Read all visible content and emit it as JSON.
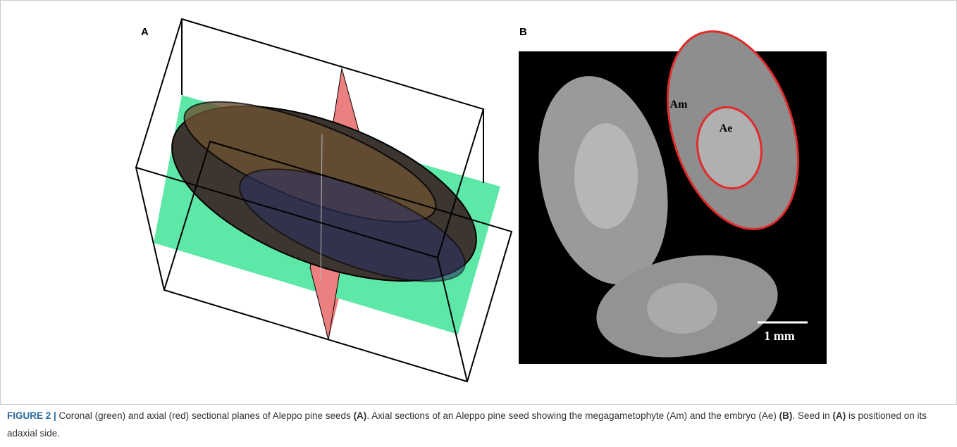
{
  "panels": [
    {
      "label": "A"
    },
    {
      "label": "B",
      "annotations": [
        "Am",
        "Ae"
      ],
      "scale_bar": "1 mm"
    }
  ],
  "caption": [
    {
      "text": "FIGURE 2 |",
      "bold": true
    },
    {
      "text": " Coronal (green) and axial (red) sectional planes of Aleppo pine seeds ",
      "bold": false
    },
    {
      "text": "(A)",
      "bold": true
    },
    {
      "text": ". Axial sections of an Aleppo pine seed showing the megagametophyte (Am) and the embryo (Ae) ",
      "bold": false
    },
    {
      "text": "(B)",
      "bold": true
    },
    {
      "text": ". Seed in ",
      "bold": false
    },
    {
      "text": "(A)",
      "bold": true
    },
    {
      "text": " is positioned on its adaxial side.",
      "bold": false
    }
  ]
}
